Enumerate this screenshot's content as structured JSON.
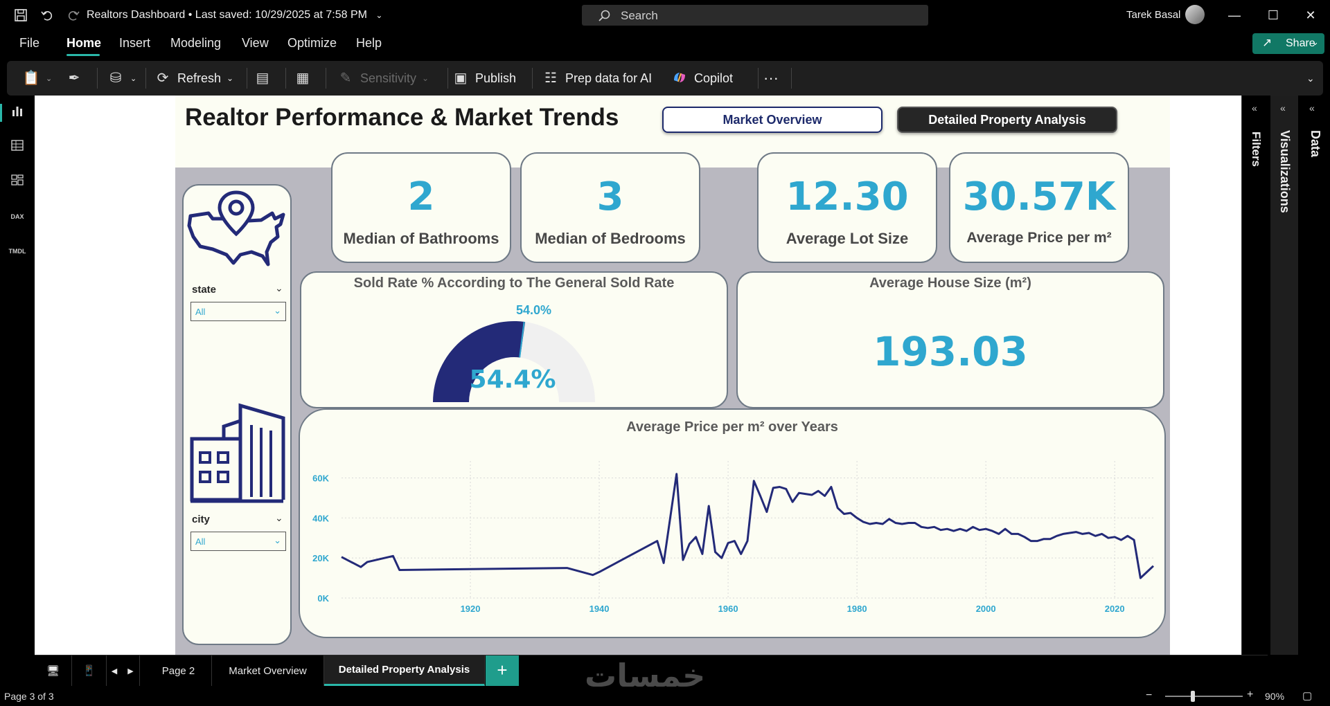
{
  "app": {
    "title": "Realtors Dashboard",
    "saved_status": "• Last saved: 10/29/2025 at 7:58 PM",
    "search_placeholder": "Search",
    "user_name": "Tarek Basal"
  },
  "menu": {
    "items": [
      "File",
      "Home",
      "Insert",
      "Modeling",
      "View",
      "Optimize",
      "Help"
    ],
    "active": "Home",
    "share_label": "Share"
  },
  "ribbon": {
    "refresh": "Refresh",
    "sensitivity": "Sensitivity",
    "publish": "Publish",
    "prep_data": "Prep data for AI",
    "copilot": "Copilot",
    "more": "···"
  },
  "report": {
    "title": "Realtor Performance & Market Trends",
    "nav_market": "Market Overview",
    "nav_detailed": "Detailed Property Analysis",
    "slicer_state_label": "state",
    "slicer_state_value": "All",
    "slicer_city_label": "city",
    "slicer_city_value": "All",
    "kpi": [
      {
        "value": "2",
        "label": "Median of Bathrooms"
      },
      {
        "value": "3",
        "label": "Median of Bedrooms"
      },
      {
        "value": "12.30",
        "label": "Average Lot Size"
      },
      {
        "value": "30.57K",
        "label": "Average Price per m²"
      }
    ],
    "gauge": {
      "title": "Sold Rate % According to The General Sold Rate",
      "value_label": "54.4%",
      "target_label": "54.0%",
      "value": 54.4,
      "target": 54.0,
      "fill_color": "#232a78",
      "track_color": "#f0f0f0"
    },
    "house_size": {
      "title": "Average House Size (m²)",
      "value": "193.03"
    }
  },
  "chart_data": {
    "type": "line",
    "title": "Average Price per m² over Years",
    "xlabel": "",
    "ylabel": "",
    "xlim": [
      1900,
      2026
    ],
    "ylim": [
      0,
      65000
    ],
    "x_ticks": [
      1920,
      1940,
      1960,
      1980,
      2000,
      2020
    ],
    "y_ticks": [
      0,
      20000,
      40000,
      60000
    ],
    "y_tick_labels": [
      "0K",
      "20K",
      "40K",
      "60K"
    ],
    "line_color": "#232a78",
    "grid": true,
    "series": [
      {
        "x": [
          1900,
          1903,
          1904,
          1908,
          1909,
          1935,
          1939,
          1940,
          1949,
          1950,
          1952,
          1953,
          1954,
          1955,
          1956,
          1957,
          1958,
          1959,
          1960,
          1961,
          1962,
          1963,
          1964,
          1965,
          1966,
          1967,
          1968,
          1969,
          1970,
          1971,
          1972,
          1973,
          1974,
          1975,
          1976,
          1977,
          1978,
          1979,
          1980,
          1981,
          1982,
          1983,
          1984,
          1985,
          1986,
          1987,
          1988,
          1989,
          1990,
          1991,
          1992,
          1993,
          1994,
          1995,
          1996,
          1997,
          1998,
          1999,
          2000,
          2001,
          2002,
          2003,
          2004,
          2005,
          2006,
          2007,
          2008,
          2009,
          2010,
          2011,
          2012,
          2013,
          2014,
          2015,
          2016,
          2017,
          2018,
          2019,
          2020,
          2021,
          2022,
          2023,
          2024,
          2025,
          2026
        ],
        "y": [
          20500,
          15500,
          18000,
          21000,
          14000,
          15000,
          11500,
          13000,
          28500,
          17500,
          62000,
          19000,
          27000,
          30500,
          22000,
          46000,
          23000,
          20000,
          27500,
          28500,
          22000,
          28500,
          58500,
          51000,
          43000,
          55000,
          55500,
          54500,
          48000,
          52500,
          52000,
          51500,
          53500,
          51000,
          55500,
          45000,
          42000,
          42500,
          40000,
          38000,
          37000,
          37500,
          37000,
          39500,
          37500,
          37000,
          37500,
          37500,
          35500,
          35000,
          35500,
          34000,
          34500,
          33500,
          34500,
          33500,
          35500,
          34000,
          34500,
          33500,
          32000,
          34500,
          32000,
          32000,
          30500,
          28500,
          28500,
          29500,
          29500,
          31000,
          32000,
          32500,
          33000,
          32000,
          32500,
          31000,
          32000,
          30000,
          30500,
          29000,
          31000,
          29000,
          10000,
          13000,
          16000
        ]
      }
    ]
  }
}
